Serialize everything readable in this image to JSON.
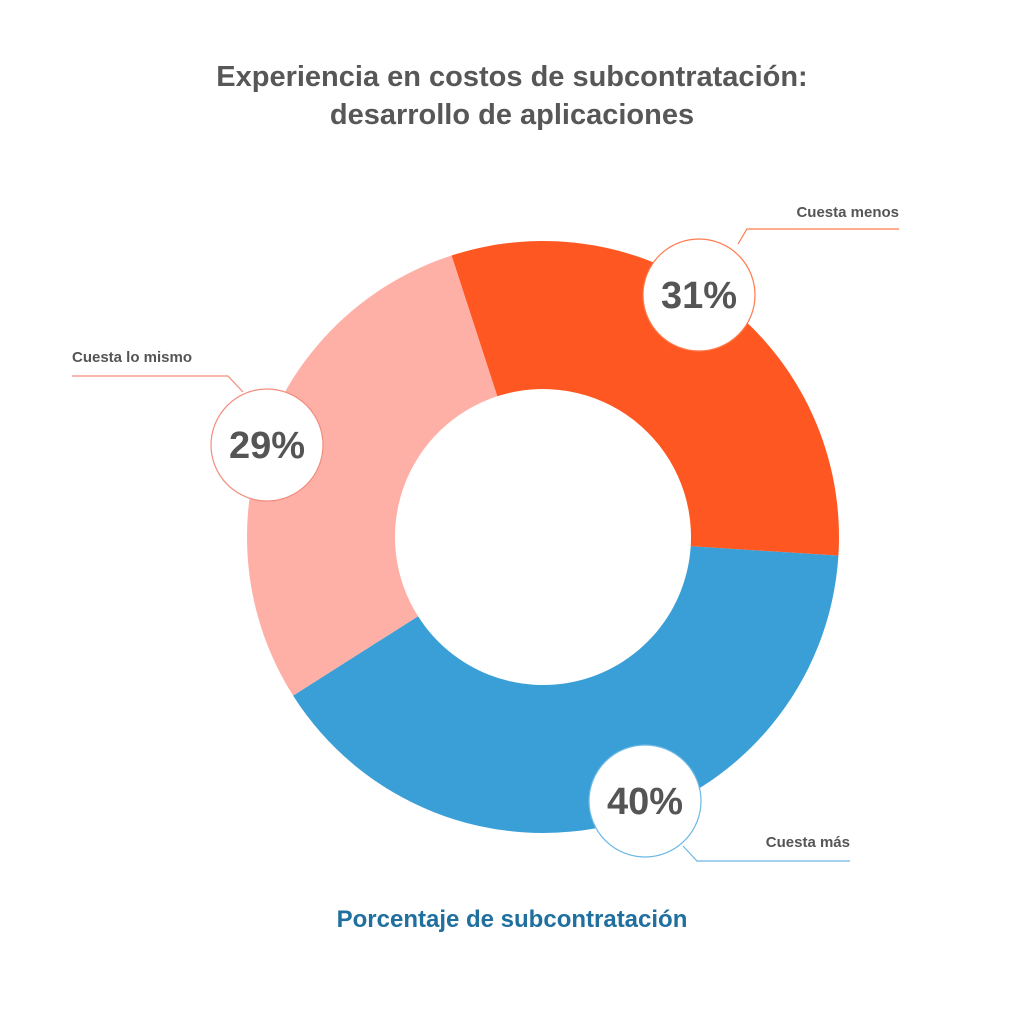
{
  "chart_data": {
    "type": "pie",
    "variant": "donut",
    "title_lines": [
      "Experiencia en costos de subcontratación:",
      "desarrollo de aplicaciones"
    ],
    "subtitle": "Porcentaje de subcontratación",
    "unit": "%",
    "legend": "none",
    "slices": [
      {
        "label": "Cuesta menos",
        "value": 31,
        "display": "31%",
        "color": "#ff5722",
        "stroke": "#ff7a4d"
      },
      {
        "label": "Cuesta más",
        "value": 40,
        "display": "40%",
        "color": "#3a9fd6",
        "stroke": "#6cb8e4"
      },
      {
        "label": "Cuesta lo mismo",
        "value": 29,
        "display": "29%",
        "color": "#ffb0a6",
        "stroke": "#f28d7e"
      }
    ]
  }
}
